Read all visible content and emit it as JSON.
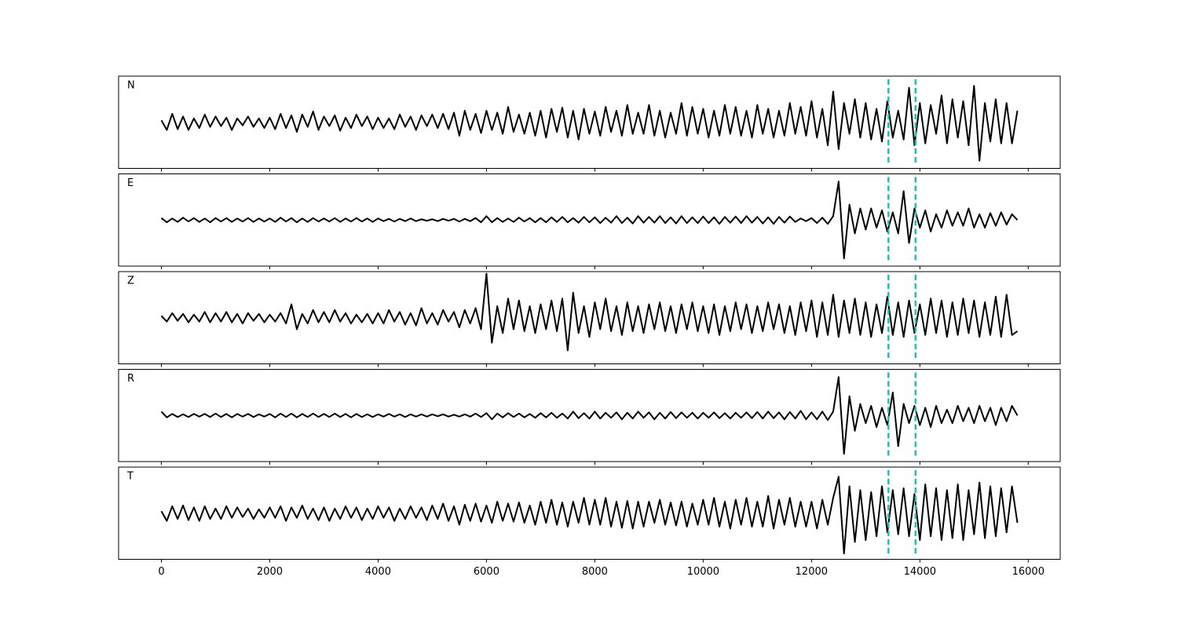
{
  "chart_data": {
    "type": "line",
    "layout": "stacked",
    "x": [
      0,
      100,
      200,
      300,
      400,
      500,
      600,
      700,
      800,
      900,
      1000,
      1100,
      1200,
      1300,
      1400,
      1500,
      1600,
      1700,
      1800,
      1900,
      2000,
      2100,
      2200,
      2300,
      2400,
      2500,
      2600,
      2700,
      2800,
      2900,
      3000,
      3100,
      3200,
      3300,
      3400,
      3500,
      3600,
      3700,
      3800,
      3900,
      4000,
      4100,
      4200,
      4300,
      4400,
      4500,
      4600,
      4700,
      4800,
      4900,
      5000,
      5100,
      5200,
      5300,
      5400,
      5500,
      5600,
      5700,
      5800,
      5900,
      6000,
      6100,
      6200,
      6300,
      6400,
      6500,
      6600,
      6700,
      6800,
      6900,
      7000,
      7100,
      7200,
      7300,
      7400,
      7500,
      7600,
      7700,
      7800,
      7900,
      8000,
      8100,
      8200,
      8300,
      8400,
      8500,
      8600,
      8700,
      8800,
      8900,
      9000,
      9100,
      9200,
      9300,
      9400,
      9500,
      9600,
      9700,
      9800,
      9900,
      10000,
      10100,
      10200,
      10300,
      10400,
      10500,
      10600,
      10700,
      10800,
      10900,
      11000,
      11100,
      11200,
      11300,
      11400,
      11500,
      11600,
      11700,
      11800,
      11900,
      12000,
      12100,
      12200,
      12300,
      12400,
      12500,
      12600,
      12700,
      12800,
      12900,
      13000,
      13100,
      13200,
      13300,
      13400,
      13500,
      13600,
      13700,
      13800,
      13900,
      14000,
      14100,
      14200,
      14300,
      14400,
      14500,
      14600,
      14700,
      14800,
      14900,
      15000,
      15100,
      15200,
      15300,
      15400,
      15500,
      15600,
      15700,
      15800
    ],
    "series": [
      {
        "name": "N",
        "color": "#000000",
        "values": [
          0.05,
          -0.2,
          0.22,
          -0.18,
          0.15,
          -0.2,
          0.1,
          -0.15,
          0.2,
          -0.12,
          0.15,
          -0.1,
          0.12,
          -0.2,
          0.1,
          -0.08,
          0.15,
          -0.12,
          0.1,
          -0.15,
          0.12,
          -0.18,
          0.22,
          -0.15,
          0.18,
          -0.25,
          0.2,
          -0.12,
          0.28,
          -0.2,
          0.15,
          -0.1,
          0.18,
          -0.22,
          0.12,
          -0.15,
          0.2,
          -0.1,
          0.15,
          -0.18,
          0.12,
          -0.15,
          0.1,
          -0.18,
          0.2,
          -0.12,
          0.15,
          -0.2,
          0.18,
          -0.1,
          0.2,
          -0.15,
          0.22,
          -0.18,
          0.25,
          -0.35,
          0.3,
          -0.2,
          0.22,
          -0.28,
          0.3,
          -0.2,
          0.25,
          -0.3,
          0.4,
          -0.25,
          0.2,
          -0.3,
          0.25,
          -0.35,
          0.3,
          -0.4,
          0.35,
          -0.25,
          0.38,
          -0.4,
          0.3,
          -0.45,
          0.35,
          -0.3,
          0.28,
          -0.35,
          0.4,
          -0.25,
          0.3,
          -0.35,
          0.45,
          -0.3,
          0.25,
          -0.3,
          0.45,
          -0.35,
          0.3,
          -0.4,
          0.25,
          -0.3,
          0.5,
          -0.35,
          0.4,
          -0.3,
          0.35,
          -0.4,
          0.3,
          -0.35,
          0.45,
          -0.3,
          0.4,
          -0.35,
          0.3,
          -0.4,
          0.45,
          -0.3,
          0.35,
          -0.4,
          0.3,
          -0.35,
          0.5,
          -0.3,
          0.4,
          -0.35,
          0.55,
          -0.4,
          0.35,
          -0.6,
          0.8,
          -0.7,
          0.5,
          -0.3,
          0.6,
          -0.4,
          0.5,
          -0.45,
          0.35,
          -0.5,
          0.55,
          -0.4,
          0.3,
          -0.45,
          0.9,
          -0.6,
          0.5,
          -0.55,
          0.45,
          -0.3,
          0.7,
          -0.55,
          0.6,
          -0.4,
          0.55,
          -0.6,
          0.95,
          -1.0,
          0.5,
          -0.5,
          0.6,
          -0.55,
          0.5,
          -0.55,
          0.3
        ]
      },
      {
        "name": "E",
        "color": "#000000",
        "values": [
          0.05,
          -0.06,
          0.04,
          -0.05,
          0.06,
          -0.04,
          0.05,
          -0.05,
          0.04,
          -0.06,
          0.05,
          -0.04,
          0.05,
          -0.05,
          0.04,
          -0.04,
          0.05,
          -0.05,
          0.04,
          -0.04,
          0.04,
          -0.05,
          0.06,
          -0.04,
          0.05,
          -0.06,
          0.04,
          -0.05,
          0.05,
          -0.04,
          0.04,
          -0.04,
          0.05,
          -0.05,
          0.04,
          -0.04,
          0.05,
          -0.04,
          0.04,
          -0.05,
          0.04,
          -0.03,
          0.03,
          -0.04,
          0.03,
          -0.03,
          0.04,
          -0.03,
          0.02,
          -0.02,
          0.02,
          -0.03,
          0.03,
          -0.02,
          0.03,
          -0.04,
          0.03,
          -0.03,
          0.05,
          -0.06,
          0.1,
          -0.06,
          0.05,
          -0.05,
          0.04,
          -0.05,
          0.06,
          -0.04,
          0.05,
          -0.06,
          0.05,
          -0.06,
          0.07,
          -0.05,
          0.08,
          -0.06,
          0.05,
          -0.07,
          0.08,
          -0.06,
          0.07,
          -0.08,
          0.06,
          -0.07,
          0.1,
          -0.08,
          0.06,
          -0.09,
          0.1,
          -0.07,
          0.08,
          -0.07,
          0.1,
          -0.08,
          0.07,
          -0.09,
          0.1,
          -0.08,
          0.07,
          -0.08,
          0.09,
          -0.08,
          0.07,
          -0.1,
          0.08,
          -0.07,
          0.09,
          -0.08,
          0.1,
          -0.07,
          0.08,
          -0.09,
          0.07,
          -0.1,
          0.08,
          -0.07,
          0.09,
          -0.05,
          0.04,
          -0.03,
          0.05,
          -0.08,
          0.06,
          -0.1,
          0.1,
          1.0,
          -1.0,
          0.4,
          -0.35,
          0.3,
          -0.25,
          0.3,
          -0.2,
          0.25,
          -0.3,
          0.2,
          -0.35,
          0.75,
          -0.6,
          0.3,
          -0.2,
          0.25,
          -0.3,
          0.15,
          -0.2,
          0.25,
          -0.15,
          0.2,
          -0.15,
          0.3,
          -0.2,
          0.15,
          -0.2,
          0.18,
          -0.15,
          0.2,
          -0.12,
          0.15,
          0.0
        ]
      },
      {
        "name": "Z",
        "color": "#000000",
        "values": [
          0.05,
          -0.1,
          0.12,
          -0.08,
          0.1,
          -0.12,
          0.08,
          -0.1,
          0.15,
          -0.12,
          0.12,
          -0.1,
          0.15,
          -0.12,
          0.1,
          -0.15,
          0.12,
          -0.08,
          0.1,
          -0.12,
          0.08,
          -0.1,
          0.12,
          -0.15,
          0.35,
          -0.3,
          0.1,
          -0.15,
          0.2,
          -0.12,
          0.15,
          -0.12,
          0.2,
          -0.1,
          0.12,
          -0.15,
          0.08,
          -0.12,
          0.1,
          -0.15,
          0.12,
          -0.15,
          0.2,
          -0.1,
          0.15,
          -0.18,
          0.12,
          -0.2,
          0.25,
          -0.15,
          0.12,
          -0.18,
          0.2,
          -0.1,
          0.15,
          -0.25,
          0.2,
          -0.15,
          0.25,
          -0.3,
          1.15,
          -0.65,
          0.3,
          -0.4,
          0.5,
          -0.3,
          0.45,
          -0.35,
          0.3,
          -0.4,
          0.35,
          -0.3,
          0.45,
          -0.35,
          0.5,
          -0.85,
          0.65,
          -0.4,
          0.3,
          -0.5,
          0.4,
          -0.3,
          0.5,
          -0.35,
          0.3,
          -0.45,
          0.4,
          -0.35,
          0.3,
          -0.4,
          0.35,
          -0.3,
          0.4,
          -0.35,
          0.3,
          -0.4,
          0.35,
          -0.3,
          0.4,
          -0.35,
          0.3,
          -0.4,
          0.35,
          -0.45,
          0.3,
          -0.35,
          0.4,
          -0.3,
          0.35,
          -0.4,
          0.3,
          -0.35,
          0.4,
          -0.3,
          0.35,
          -0.4,
          0.3,
          -0.45,
          0.4,
          -0.35,
          0.45,
          -0.5,
          0.4,
          -0.45,
          0.6,
          -0.5,
          0.45,
          -0.4,
          0.5,
          -0.45,
          0.4,
          -0.5,
          0.35,
          -0.4,
          0.55,
          -0.45,
          0.4,
          -0.5,
          0.45,
          -0.4,
          0.35,
          -0.45,
          0.5,
          -0.4,
          0.45,
          -0.5,
          0.4,
          -0.45,
          0.5,
          -0.4,
          0.45,
          -0.5,
          0.4,
          -0.45,
          0.55,
          -0.5,
          0.6,
          -0.45,
          -0.35
        ]
      },
      {
        "name": "R",
        "color": "#000000",
        "values": [
          0.1,
          -0.05,
          0.04,
          -0.04,
          0.03,
          -0.04,
          0.04,
          -0.03,
          0.04,
          -0.04,
          0.05,
          -0.04,
          0.04,
          -0.05,
          0.04,
          -0.03,
          0.04,
          -0.04,
          0.03,
          -0.03,
          0.04,
          -0.05,
          0.05,
          -0.04,
          0.05,
          -0.05,
          0.04,
          -0.04,
          0.05,
          -0.04,
          0.04,
          -0.04,
          0.05,
          -0.04,
          0.04,
          -0.05,
          0.04,
          -0.04,
          0.03,
          -0.04,
          0.03,
          -0.03,
          0.04,
          -0.03,
          0.03,
          -0.04,
          0.03,
          -0.03,
          0.03,
          -0.03,
          0.03,
          -0.02,
          0.03,
          -0.03,
          0.02,
          -0.03,
          0.03,
          -0.03,
          0.05,
          -0.04,
          0.06,
          -0.1,
          0.05,
          -0.05,
          0.06,
          -0.04,
          0.05,
          -0.05,
          0.04,
          -0.06,
          0.06,
          -0.05,
          0.07,
          -0.06,
          0.05,
          -0.08,
          0.1,
          -0.07,
          0.06,
          -0.08,
          0.1,
          -0.08,
          0.07,
          -0.06,
          0.08,
          -0.1,
          0.07,
          -0.08,
          0.1,
          -0.06,
          0.08,
          -0.1,
          0.07,
          -0.08,
          0.09,
          -0.07,
          0.08,
          -0.06,
          0.07,
          -0.08,
          0.07,
          -0.06,
          0.08,
          -0.07,
          0.06,
          -0.08,
          0.07,
          -0.06,
          0.08,
          -0.07,
          0.09,
          -0.08,
          0.1,
          -0.07,
          0.08,
          -0.1,
          0.09,
          -0.08,
          0.12,
          -0.1,
          0.08,
          -0.1,
          0.1,
          -0.12,
          0.1,
          1.0,
          -1.0,
          0.5,
          -0.4,
          0.3,
          -0.2,
          0.25,
          -0.3,
          0.2,
          -0.25,
          0.6,
          -0.8,
          0.3,
          -0.2,
          0.25,
          -0.25,
          0.2,
          -0.3,
          0.25,
          -0.2,
          0.15,
          -0.2,
          0.25,
          -0.15,
          0.2,
          -0.2,
          0.25,
          -0.15,
          0.2,
          -0.25,
          0.2,
          -0.15,
          0.25,
          0.0
        ]
      },
      {
        "name": "T",
        "color": "#000000",
        "values": [
          0.05,
          -0.2,
          0.18,
          -0.15,
          0.2,
          -0.18,
          0.15,
          -0.2,
          0.18,
          -0.15,
          0.12,
          -0.15,
          0.18,
          -0.12,
          0.15,
          -0.1,
          0.12,
          -0.15,
          0.1,
          -0.12,
          0.15,
          -0.12,
          0.18,
          -0.2,
          0.15,
          -0.12,
          0.2,
          -0.15,
          0.12,
          -0.18,
          0.15,
          -0.2,
          0.12,
          -0.15,
          0.18,
          -0.12,
          0.15,
          -0.18,
          0.12,
          -0.15,
          0.18,
          -0.12,
          0.15,
          -0.2,
          0.12,
          -0.15,
          0.18,
          -0.12,
          0.15,
          -0.18,
          0.2,
          -0.15,
          0.25,
          -0.2,
          0.18,
          -0.3,
          0.22,
          -0.2,
          0.25,
          -0.22,
          0.2,
          -0.25,
          0.3,
          -0.2,
          0.25,
          -0.22,
          0.28,
          -0.25,
          0.2,
          -0.3,
          0.3,
          -0.25,
          0.35,
          -0.3,
          0.28,
          -0.35,
          0.3,
          -0.25,
          0.4,
          -0.3,
          0.35,
          -0.3,
          0.4,
          -0.35,
          0.3,
          -0.38,
          0.32,
          -0.4,
          0.3,
          -0.35,
          0.3,
          -0.25,
          0.35,
          -0.3,
          0.28,
          -0.32,
          0.3,
          -0.35,
          0.25,
          -0.3,
          0.35,
          -0.3,
          0.4,
          -0.35,
          0.3,
          -0.4,
          0.35,
          -0.3,
          0.4,
          -0.35,
          0.3,
          -0.35,
          0.45,
          -0.4,
          0.35,
          -0.3,
          0.4,
          -0.35,
          0.3,
          -0.35,
          0.3,
          -0.4,
          0.35,
          -0.3,
          0.4,
          0.95,
          -1.05,
          0.7,
          -0.75,
          0.6,
          -0.7,
          0.55,
          -0.6,
          0.7,
          -0.5,
          0.6,
          -0.55,
          0.65,
          -0.6,
          0.5,
          -0.7,
          0.75,
          -0.6,
          0.65,
          -0.7,
          0.6,
          -0.65,
          0.75,
          -0.7,
          0.6,
          -0.55,
          0.8,
          -0.65,
          0.7,
          -0.6,
          0.65,
          -0.5,
          0.7,
          -0.25
        ]
      }
    ],
    "xlim": [
      -790,
      16590
    ],
    "xticks": [
      0,
      2000,
      4000,
      6000,
      8000,
      10000,
      12000,
      14000,
      16000
    ],
    "ylim": [
      -1.2,
      1.2
    ],
    "vlines": [
      13420,
      13920
    ],
    "vline_color": "#1fbfbf"
  }
}
